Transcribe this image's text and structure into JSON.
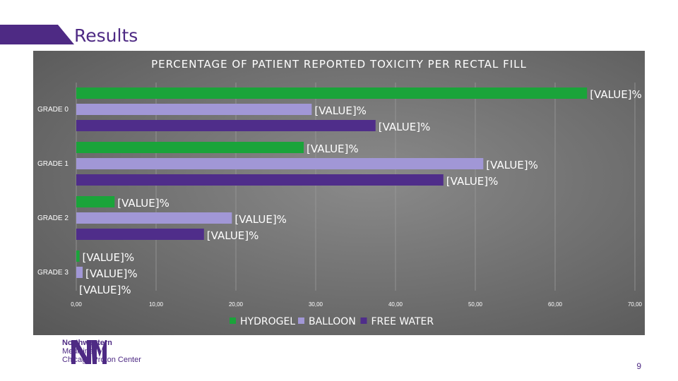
{
  "slide": {
    "title": "Results",
    "page_number": "9"
  },
  "logo": {
    "line1": "Northwestern",
    "line2": "Medicine",
    "line3": "Chicago Proton Center"
  },
  "colors": {
    "hydrogel": "#1aa43a",
    "balloon": "#a197d6",
    "free_water": "#4f2d8a",
    "brand": "#4e2a84"
  },
  "chart_data": {
    "type": "bar",
    "orientation": "horizontal",
    "title": "PERCENTAGE OF PATIENT REPORTED TOXICITY PER RECTAL FILL",
    "categories": [
      "GRADE 0",
      "GRADE 1",
      "GRADE 2",
      "GRADE 3"
    ],
    "series": [
      {
        "name": "HYDROGEL",
        "values": [
          64.0,
          28.5,
          4.8,
          0.4
        ],
        "label": "[VALUE]%"
      },
      {
        "name": "BALLOON",
        "values": [
          29.5,
          51.0,
          19.5,
          0.8
        ],
        "label": "[VALUE]%"
      },
      {
        "name": "FREE WATER",
        "values": [
          37.5,
          46.0,
          16.0,
          0.0
        ],
        "label": "[VALUE]%"
      }
    ],
    "x_ticks": [
      "0,00",
      "10,00",
      "20,00",
      "30,00",
      "40,00",
      "50,00",
      "60,00",
      "70,00"
    ],
    "xlim": [
      0,
      70
    ],
    "grid": true,
    "legend_position": "bottom"
  }
}
